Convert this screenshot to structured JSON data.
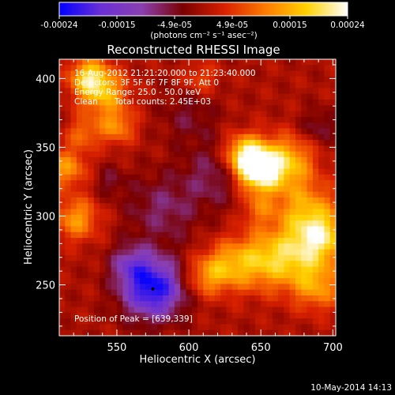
{
  "chart_data": {
    "type": "heatmap",
    "title": "Reconstructed RHESSI Image",
    "xlabel": "Heliocentric X (arcsec)",
    "ylabel": "Heliocentric Y (arcsec)",
    "xlim": [
      510,
      702
    ],
    "ylim": [
      213,
      414
    ],
    "x_ticks": [
      "550",
      "600",
      "650",
      "700"
    ],
    "y_ticks": [
      "250",
      "300",
      "350",
      "400"
    ],
    "x_tick_values": [
      550,
      600,
      650,
      700
    ],
    "y_tick_values": [
      250,
      300,
      350,
      400
    ],
    "colorbar": {
      "label": "(photons cm⁻² s⁻¹ asec⁻²)",
      "tick_labels": [
        "-0.00024",
        "-0.00015",
        "-4.9e-05",
        "4.9e-05",
        "0.00015",
        "0.00024"
      ],
      "min": -0.00024,
      "max": 0.00024,
      "colormap": [
        "#0000ff",
        "#6a2fd6",
        "#8a3fb0",
        "#7a0000",
        "#d82000",
        "#ff7a00",
        "#ffd200",
        "#ffffff"
      ]
    },
    "annotations": {
      "time_range": "16-Aug-2012 21:21:20.000 to 21:23:40.000",
      "detectors": "Detectors: 3F 5F 6F 7F 8F 9F, Att 0",
      "energy_range": "Energy Range: 25.0 - 50.0 keV",
      "method": "Clean",
      "total_counts": "Total counts: 2.45E+03",
      "peak": "Position of Peak = [639,339]"
    },
    "sources": [
      {
        "x": 648,
        "y": 332,
        "sigma": 11,
        "amp": 1.0
      },
      {
        "x": 639,
        "y": 345,
        "sigma": 10,
        "amp": 0.8
      },
      {
        "x": 668,
        "y": 340,
        "sigma": 13,
        "amp": 0.62
      },
      {
        "x": 680,
        "y": 306,
        "sigma": 15,
        "amp": 0.5
      },
      {
        "x": 693,
        "y": 285,
        "sigma": 13,
        "amp": 0.65
      },
      {
        "x": 673,
        "y": 270,
        "sigma": 16,
        "amp": 0.55
      },
      {
        "x": 648,
        "y": 268,
        "sigma": 15,
        "amp": 0.5
      },
      {
        "x": 625,
        "y": 263,
        "sigma": 12,
        "amp": 0.45
      },
      {
        "x": 690,
        "y": 248,
        "sigma": 12,
        "amp": 0.45
      },
      {
        "x": 610,
        "y": 255,
        "sigma": 10,
        "amp": 0.35
      },
      {
        "x": 540,
        "y": 390,
        "sigma": 12,
        "amp": 0.62
      },
      {
        "x": 530,
        "y": 402,
        "sigma": 9,
        "amp": 0.6
      },
      {
        "x": 550,
        "y": 365,
        "sigma": 9,
        "amp": 0.45
      },
      {
        "x": 522,
        "y": 298,
        "sigma": 11,
        "amp": 0.52
      },
      {
        "x": 515,
        "y": 335,
        "sigma": 10,
        "amp": 0.5
      },
      {
        "x": 527,
        "y": 360,
        "sigma": 8,
        "amp": 0.35
      },
      {
        "x": 608,
        "y": 400,
        "sigma": 8,
        "amp": 0.28
      },
      {
        "x": 648,
        "y": 305,
        "sigma": 8,
        "amp": 0.3
      },
      {
        "x": 575,
        "y": 247,
        "sigma": 15,
        "amp": -0.95
      },
      {
        "x": 560,
        "y": 265,
        "sigma": 10,
        "amp": -0.4
      },
      {
        "x": 620,
        "y": 330,
        "sigma": 16,
        "amp": -0.3
      },
      {
        "x": 582,
        "y": 305,
        "sigma": 18,
        "amp": -0.3
      },
      {
        "x": 600,
        "y": 372,
        "sigma": 14,
        "amp": -0.2
      },
      {
        "x": 690,
        "y": 365,
        "sigma": 9,
        "amp": -0.25
      },
      {
        "x": 545,
        "y": 325,
        "sigma": 8,
        "amp": -0.2
      }
    ]
  },
  "footer": {
    "timestamp": "10-May-2014 14:13"
  }
}
